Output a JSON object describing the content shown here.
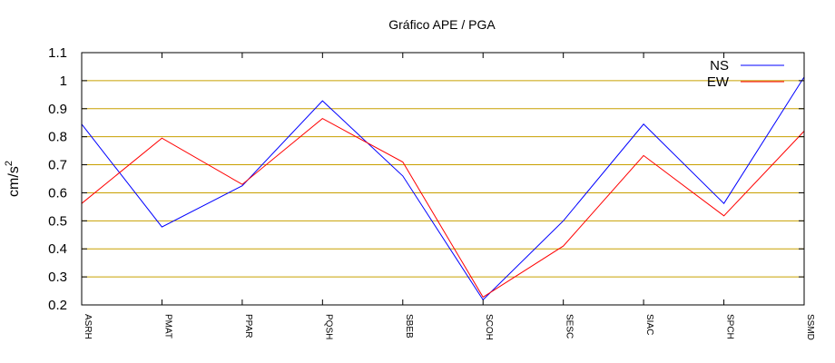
{
  "chart_data": {
    "type": "line",
    "title": "Gráfico  APE / PGA",
    "ylabel": "cm/s",
    "ylabel_sup": "2",
    "xlabel": "",
    "categories": [
      "ASRH",
      "PMAT",
      "PPAR",
      "PQSH",
      "SBEB",
      "SCOH",
      "SESC",
      "SIAC",
      "SPCH",
      "SSMD"
    ],
    "series": [
      {
        "name": "NS",
        "color": "#0000ff",
        "values": [
          0.845,
          0.478,
          0.625,
          0.928,
          0.66,
          0.218,
          0.5,
          0.845,
          0.562,
          1.013
        ]
      },
      {
        "name": "EW",
        "color": "#ff0000",
        "values": [
          0.562,
          0.795,
          0.63,
          0.865,
          0.71,
          0.228,
          0.41,
          0.733,
          0.518,
          0.82
        ]
      }
    ],
    "ylim": [
      0.2,
      1.1
    ],
    "yticks": [
      "0.2",
      "0.3",
      "0.4",
      "0.5",
      "0.6",
      "0.7",
      "0.8",
      "0.9",
      "1",
      "1.1"
    ],
    "grid": true,
    "grid_color": "#c8a000",
    "legend": "top-right"
  }
}
